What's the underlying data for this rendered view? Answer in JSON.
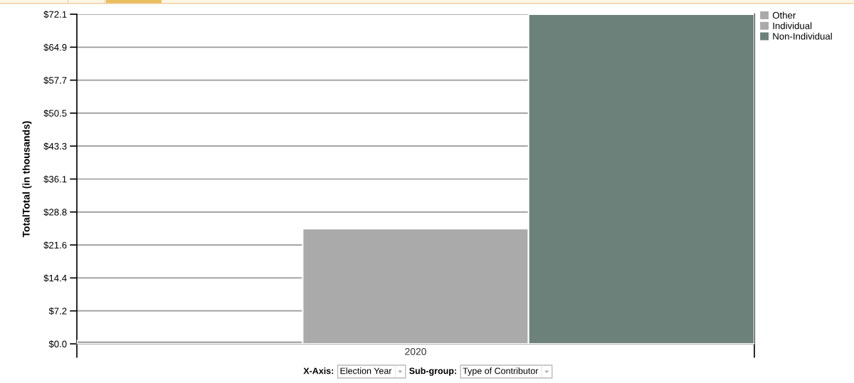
{
  "chart_data": {
    "type": "bar",
    "categories": [
      "2020"
    ],
    "series": [
      {
        "name": "Other",
        "color": "#aaaaaa",
        "values": [
          0.7
        ]
      },
      {
        "name": "Individual",
        "color": "#aaaaaa",
        "values": [
          25.2
        ]
      },
      {
        "name": "Non-Individual",
        "color": "#6c8179",
        "values": [
          72.1
        ]
      }
    ],
    "ylabel": "TotalTotal (in thousands)",
    "ylim": [
      0,
      72.1
    ],
    "yticks": [
      {
        "value": 0,
        "label": "$0.0"
      },
      {
        "value": 7.21,
        "label": "$7.2"
      },
      {
        "value": 14.42,
        "label": "$14.4"
      },
      {
        "value": 21.63,
        "label": "$21.6"
      },
      {
        "value": 28.84,
        "label": "$28.8"
      },
      {
        "value": 36.05,
        "label": "$36.1"
      },
      {
        "value": 43.26,
        "label": "$43.3"
      },
      {
        "value": 50.47,
        "label": "$50.5"
      },
      {
        "value": 57.68,
        "label": "$57.7"
      },
      {
        "value": 64.89,
        "label": "$64.9"
      },
      {
        "value": 72.1,
        "label": "$72.1"
      }
    ],
    "grid": "y",
    "legend": "top right",
    "annotations": [
      "X-Axis:",
      "Election Year",
      "Sub-group:",
      "Type of Contributor"
    ]
  }
}
